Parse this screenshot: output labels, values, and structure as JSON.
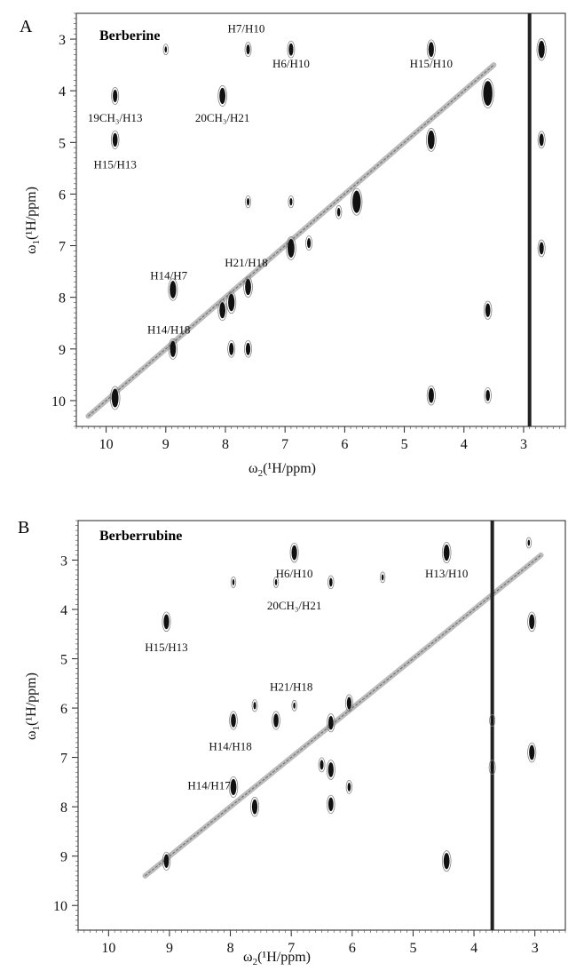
{
  "chart_data": [
    {
      "type": "scatter",
      "panel_letter": "A",
      "compound": "Berberine",
      "xlabel_main": "ω",
      "xlabel_sub": "2",
      "xlabel_rest": "(¹H/ppm)",
      "ylabel_main": "ω",
      "ylabel_sub": "1",
      "ylabel_rest": "(¹H/ppm)",
      "xlim": [
        10.5,
        2.3
      ],
      "ylim": [
        2.5,
        10.5
      ],
      "x_ticks": [
        10,
        9,
        8,
        7,
        6,
        5,
        4,
        3
      ],
      "y_ticks": [
        3,
        4,
        5,
        6,
        7,
        8,
        9,
        10
      ],
      "diagonal": {
        "from": 10.3,
        "to": 3.5
      },
      "cross_peaks": [
        {
          "x": 9.85,
          "y": 4.1,
          "size": 1.0
        },
        {
          "x": 9.85,
          "y": 4.95,
          "size": 1.1
        },
        {
          "x": 8.88,
          "y": 7.85,
          "size": 1.4
        },
        {
          "x": 8.88,
          "y": 9.0,
          "size": 1.3
        },
        {
          "x": 8.05,
          "y": 4.1,
          "size": 1.3
        },
        {
          "x": 8.05,
          "y": 8.25,
          "size": 1.3
        },
        {
          "x": 7.9,
          "y": 8.1,
          "size": 1.4
        },
        {
          "x": 7.9,
          "y": 9.0,
          "size": 1.0
        },
        {
          "x": 7.62,
          "y": 3.2,
          "size": 0.8
        },
        {
          "x": 7.62,
          "y": 7.8,
          "size": 1.3
        },
        {
          "x": 7.62,
          "y": 9.0,
          "size": 1.0
        },
        {
          "x": 7.62,
          "y": 6.15,
          "size": 0.6
        },
        {
          "x": 6.9,
          "y": 3.2,
          "size": 1.0
        },
        {
          "x": 6.9,
          "y": 7.05,
          "size": 1.5
        },
        {
          "x": 6.9,
          "y": 6.15,
          "size": 0.6
        },
        {
          "x": 5.8,
          "y": 6.15,
          "size": 1.8
        },
        {
          "x": 4.55,
          "y": 3.2,
          "size": 1.2
        },
        {
          "x": 4.55,
          "y": 4.95,
          "size": 1.5
        },
        {
          "x": 4.55,
          "y": 9.9,
          "size": 1.2
        },
        {
          "x": 3.6,
          "y": 4.05,
          "size": 2.0
        },
        {
          "x": 3.6,
          "y": 8.25,
          "size": 1.1
        },
        {
          "x": 3.6,
          "y": 9.9,
          "size": 0.9
        },
        {
          "x": 2.7,
          "y": 3.2,
          "size": 1.4
        },
        {
          "x": 2.7,
          "y": 4.95,
          "size": 1.0
        },
        {
          "x": 2.7,
          "y": 7.05,
          "size": 1.0
        },
        {
          "x": 9.85,
          "y": 9.95,
          "size": 1.5
        },
        {
          "x": 9.0,
          "y": 3.2,
          "size": 0.5
        },
        {
          "x": 6.6,
          "y": 6.95,
          "size": 0.8
        },
        {
          "x": 6.1,
          "y": 6.35,
          "size": 0.7
        }
      ],
      "solvent_x": 2.9,
      "annotations": [
        {
          "text": "H7/H10",
          "x": 7.65,
          "y": 2.87
        },
        {
          "text": "H6/H10",
          "x": 6.9,
          "y": 3.55
        },
        {
          "text": "H15/H10",
          "x": 4.55,
          "y": 3.55
        },
        {
          "text": "19CH₃/H13",
          "x": 9.85,
          "y": 4.6
        },
        {
          "text": "20CH₃/H21",
          "x": 8.05,
          "y": 4.6
        },
        {
          "text": "H15/H13",
          "x": 9.85,
          "y": 5.5
        },
        {
          "text": "H21/H18",
          "x": 7.65,
          "y": 7.4
        },
        {
          "text": "H14/H7",
          "x": 8.95,
          "y": 7.65
        },
        {
          "text": "H14/H18",
          "x": 8.95,
          "y": 8.7
        }
      ]
    },
    {
      "type": "scatter",
      "panel_letter": "B",
      "compound": "Berberrubine",
      "xlabel_main": "ω",
      "xlabel_sub": "2",
      "xlabel_rest": "(¹H/ppm)",
      "ylabel_main": "ω",
      "ylabel_sub": "1",
      "ylabel_rest": "(¹H/ppm)",
      "xlim": [
        10.5,
        2.5
      ],
      "ylim": [
        2.2,
        10.5
      ],
      "x_ticks": [
        10,
        9,
        8,
        7,
        6,
        5,
        4,
        3
      ],
      "y_ticks": [
        3,
        4,
        5,
        6,
        7,
        8,
        9,
        10
      ],
      "diagonal": {
        "from": 9.4,
        "to": 2.9
      },
      "cross_peaks": [
        {
          "x": 9.05,
          "y": 4.25,
          "size": 1.2
        },
        {
          "x": 9.05,
          "y": 9.1,
          "size": 1.1
        },
        {
          "x": 7.95,
          "y": 6.25,
          "size": 1.1
        },
        {
          "x": 7.95,
          "y": 7.6,
          "size": 1.3
        },
        {
          "x": 7.6,
          "y": 8.0,
          "size": 1.2
        },
        {
          "x": 7.6,
          "y": 5.95,
          "size": 0.6
        },
        {
          "x": 7.25,
          "y": 6.25,
          "size": 1.1
        },
        {
          "x": 6.95,
          "y": 2.85,
          "size": 1.2
        },
        {
          "x": 6.95,
          "y": 5.95,
          "size": 0.5
        },
        {
          "x": 6.35,
          "y": 3.45,
          "size": 0.7
        },
        {
          "x": 6.35,
          "y": 6.3,
          "size": 1.1
        },
        {
          "x": 6.35,
          "y": 7.25,
          "size": 1.2
        },
        {
          "x": 6.35,
          "y": 7.95,
          "size": 1.1
        },
        {
          "x": 6.5,
          "y": 7.15,
          "size": 0.8
        },
        {
          "x": 6.05,
          "y": 5.9,
          "size": 1.0
        },
        {
          "x": 6.05,
          "y": 7.6,
          "size": 0.7
        },
        {
          "x": 4.45,
          "y": 2.85,
          "size": 1.3
        },
        {
          "x": 4.45,
          "y": 9.1,
          "size": 1.3
        },
        {
          "x": 3.05,
          "y": 4.25,
          "size": 1.2
        },
        {
          "x": 3.05,
          "y": 6.9,
          "size": 1.2
        },
        {
          "x": 3.7,
          "y": 6.25,
          "size": 0.6
        },
        {
          "x": 3.7,
          "y": 7.2,
          "size": 0.8
        },
        {
          "x": 3.1,
          "y": 2.65,
          "size": 0.5
        },
        {
          "x": 7.25,
          "y": 3.45,
          "size": 0.5
        },
        {
          "x": 7.95,
          "y": 3.45,
          "size": 0.5
        },
        {
          "x": 5.5,
          "y": 3.35,
          "size": 0.5
        }
      ],
      "solvent_x": 3.7,
      "annotations": [
        {
          "text": "H6/H10",
          "x": 6.95,
          "y": 3.35
        },
        {
          "text": "H13/H10",
          "x": 4.45,
          "y": 3.35
        },
        {
          "text": "20CH₃/H21",
          "x": 6.95,
          "y": 4.0
        },
        {
          "text": "H15/H13",
          "x": 9.05,
          "y": 4.85
        },
        {
          "text": "H21/H18",
          "x": 7.0,
          "y": 5.65
        },
        {
          "text": "H14/H18",
          "x": 8.0,
          "y": 6.85
        },
        {
          "text": "H14/H17",
          "x": 8.35,
          "y": 7.65
        }
      ]
    }
  ]
}
